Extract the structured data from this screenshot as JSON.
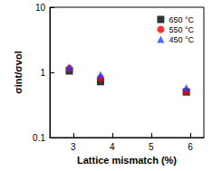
{
  "chart_data": {
    "type": "scatter",
    "x_label": "Lattice mismatch (%)",
    "y_label": "σint/σvol",
    "log": "y",
    "xlim": [
      2.4,
      6.35
    ],
    "xticks": [
      3,
      4,
      5,
      6
    ],
    "ylim": [
      0.1,
      10
    ],
    "yticks": [
      0.1,
      1,
      10
    ],
    "legend": "upper right",
    "grid": false,
    "x": [
      2.9,
      3.7,
      5.9
    ],
    "series": [
      {
        "name": "650 °C",
        "color": "#000000",
        "marker": "square",
        "values": [
          1.05,
          0.72,
          0.5
        ]
      },
      {
        "name": "550 °C",
        "color": "#ff0000",
        "marker": "circle",
        "values": [
          1.15,
          0.82,
          0.52
        ]
      },
      {
        "name": "450 °C",
        "color": "#1f3fff",
        "marker": "triangle",
        "values": [
          1.2,
          0.92,
          0.58
        ]
      }
    ]
  }
}
